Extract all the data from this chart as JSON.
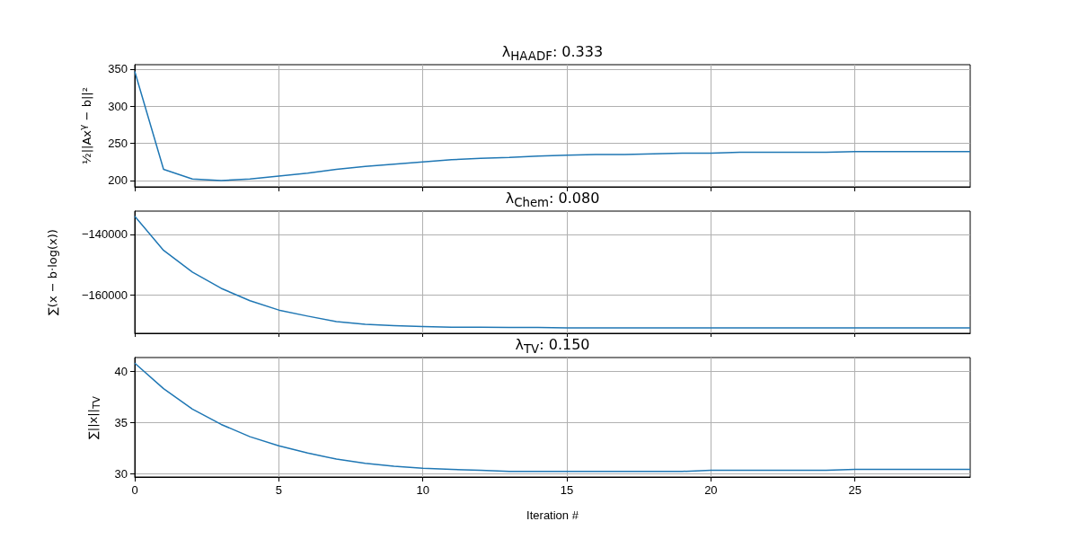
{
  "chart_data": [
    {
      "type": "line",
      "title": "λ$_{HAADF}$: 0.333",
      "ylabel": "½||Ax$^{γ}$ − b||²",
      "x": [
        0,
        1,
        2,
        3,
        4,
        5,
        6,
        7,
        8,
        9,
        10,
        11,
        12,
        13,
        14,
        15,
        16,
        17,
        18,
        19,
        20,
        21,
        22,
        23,
        24,
        25,
        26,
        27,
        28,
        29
      ],
      "series": [
        {
          "color": "#1f77b4",
          "values": [
            347,
            215,
            202,
            200,
            202,
            206,
            210,
            215,
            219,
            222,
            225,
            228,
            230,
            231,
            233,
            234,
            235,
            235,
            236,
            237,
            237,
            238,
            238,
            238,
            238,
            239,
            239,
            239,
            239,
            239
          ]
        }
      ],
      "xlim": [
        0,
        29
      ],
      "xticks": [
        0,
        5,
        10,
        15,
        20,
        25
      ],
      "ylim": [
        191.5,
        356
      ],
      "yticks": [
        200,
        250,
        300,
        350
      ],
      "grid": true,
      "marker": "none",
      "tick_labels": "y"
    },
    {
      "type": "line",
      "title": "λ$_{Chem}$: 0.080",
      "ylabel": "∑(x − b·log(x))",
      "x": [
        0,
        1,
        2,
        3,
        4,
        5,
        6,
        7,
        8,
        9,
        10,
        11,
        12,
        13,
        14,
        15,
        16,
        17,
        18,
        19,
        20,
        21,
        22,
        23,
        24,
        25,
        26,
        27,
        28,
        29
      ],
      "series": [
        {
          "color": "#1f77b4",
          "values": [
            -134000,
            -145300,
            -152500,
            -157900,
            -162000,
            -165100,
            -167100,
            -168900,
            -169800,
            -170300,
            -170600,
            -170800,
            -170800,
            -170900,
            -170900,
            -171000,
            -171000,
            -171000,
            -171000,
            -171000,
            -171000,
            -171000,
            -171000,
            -171000,
            -171000,
            -171000,
            -171000,
            -171000,
            -171000,
            -171000
          ]
        }
      ],
      "xlim": [
        0,
        29
      ],
      "xticks": [
        0,
        5,
        10,
        15,
        20,
        25
      ],
      "ylim": [
        -172800,
        -132300
      ],
      "yticks": [
        -160000,
        -140000
      ],
      "grid": true,
      "marker": "none",
      "tick_labels": "y"
    },
    {
      "type": "line",
      "title": "λ$_{TV}$: 0.150",
      "ylabel": "∑||x||$_{TV}$",
      "xlabel": "Iteration #",
      "x": [
        0,
        1,
        2,
        3,
        4,
        5,
        6,
        7,
        8,
        9,
        10,
        11,
        12,
        13,
        14,
        15,
        16,
        17,
        18,
        19,
        20,
        21,
        22,
        23,
        24,
        25,
        26,
        27,
        28,
        29
      ],
      "series": [
        {
          "color": "#1f77b4",
          "values": [
            40.8,
            38.3,
            36.3,
            34.8,
            33.6,
            32.7,
            32.0,
            31.4,
            31.0,
            30.7,
            30.5,
            30.4,
            30.3,
            30.2,
            30.2,
            30.2,
            30.2,
            30.2,
            30.2,
            30.2,
            30.3,
            30.3,
            30.3,
            30.3,
            30.3,
            30.4,
            30.4,
            30.4,
            30.4,
            30.4
          ]
        }
      ],
      "xlim": [
        0,
        29
      ],
      "xticks": [
        0,
        5,
        10,
        15,
        20,
        25
      ],
      "ylim": [
        29.65,
        41.35
      ],
      "yticks": [
        30,
        35,
        40
      ],
      "grid": true,
      "marker": "none"
    }
  ]
}
